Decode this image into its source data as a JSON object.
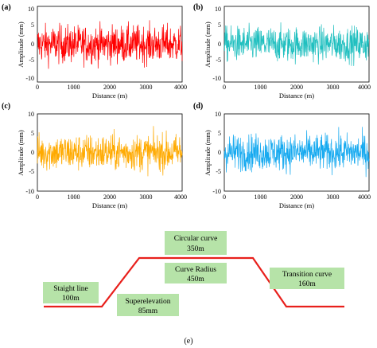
{
  "panels": [
    {
      "label": "(a)",
      "color": "#ff0000",
      "ylabel": "Amplitude (mm)",
      "xlabel": "Distance (m)",
      "yticks": [
        "10",
        "5",
        "0",
        "-5",
        "-10"
      ],
      "xticks": [
        "0",
        "1000",
        "2000",
        "3000",
        "4000"
      ]
    },
    {
      "label": "(b)",
      "color": "#1fbfbf",
      "ylabel": "Amplitude (mm)",
      "xlabel": "Distance (m)",
      "yticks": [
        "10",
        "5",
        "0",
        "-5",
        "-10"
      ],
      "xticks": [
        "0",
        "1000",
        "2000",
        "3000",
        "4000"
      ]
    },
    {
      "label": "(c)",
      "color": "#ffaa00",
      "ylabel": "Amplitude (mm)",
      "xlabel": "Distance (m)",
      "yticks": [
        "10",
        "5",
        "0",
        "-5",
        "-10"
      ],
      "xticks": [
        "0",
        "1000",
        "2000",
        "3000",
        "4000"
      ]
    },
    {
      "label": "(d)",
      "color": "#17aaf0",
      "ylabel": "Amplitude (mm)",
      "xlabel": "Distance (m)",
      "yticks": [
        "10",
        "5",
        "0",
        "-5",
        "-10"
      ],
      "xticks": [
        "0",
        "1000",
        "2000",
        "3000",
        "4000"
      ]
    }
  ],
  "chart_data": [
    {
      "type": "line",
      "panel": "(a)",
      "xlabel": "Distance (m)",
      "ylabel": "Amplitude (mm)",
      "xlim": [
        0,
        4000
      ],
      "ylim": [
        -11,
        11
      ],
      "series": [
        {
          "color": "#ff0000",
          "amplitude_range": [
            -11,
            11
          ]
        }
      ]
    },
    {
      "type": "line",
      "panel": "(b)",
      "xlabel": "Distance (m)",
      "ylabel": "Amplitude (mm)",
      "xlim": [
        0,
        4000
      ],
      "ylim": [
        -11,
        11
      ],
      "series": [
        {
          "color": "#1fbfbf",
          "amplitude_range": [
            -10,
            10.5
          ]
        }
      ]
    },
    {
      "type": "line",
      "panel": "(c)",
      "xlabel": "Distance (m)",
      "ylabel": "Amplitude (mm)",
      "xlim": [
        0,
        4000
      ],
      "ylim": [
        -10,
        10
      ],
      "series": [
        {
          "color": "#ffaa00",
          "amplitude_range": [
            -9.5,
            9.5
          ]
        }
      ]
    },
    {
      "type": "line",
      "panel": "(d)",
      "xlabel": "Distance (m)",
      "ylabel": "Amplitude (mm)",
      "xlim": [
        0,
        4000
      ],
      "ylim": [
        -10,
        10
      ],
      "series": [
        {
          "color": "#17aaf0",
          "amplitude_range": [
            -9.5,
            9.5
          ]
        }
      ]
    }
  ],
  "diagram": {
    "label": "(e)",
    "line_color": "#e8201c",
    "box_color": "#b6e3a8",
    "boxes": [
      {
        "line1": "Circular curve",
        "line2": "350m"
      },
      {
        "line1": "Curve Radius",
        "line2": "450m"
      },
      {
        "line1": "Transition curve",
        "line2": "160m"
      },
      {
        "line1": "Staight line",
        "line2": "100m"
      },
      {
        "line1": "Superelevation",
        "line2": "85mm"
      }
    ]
  }
}
